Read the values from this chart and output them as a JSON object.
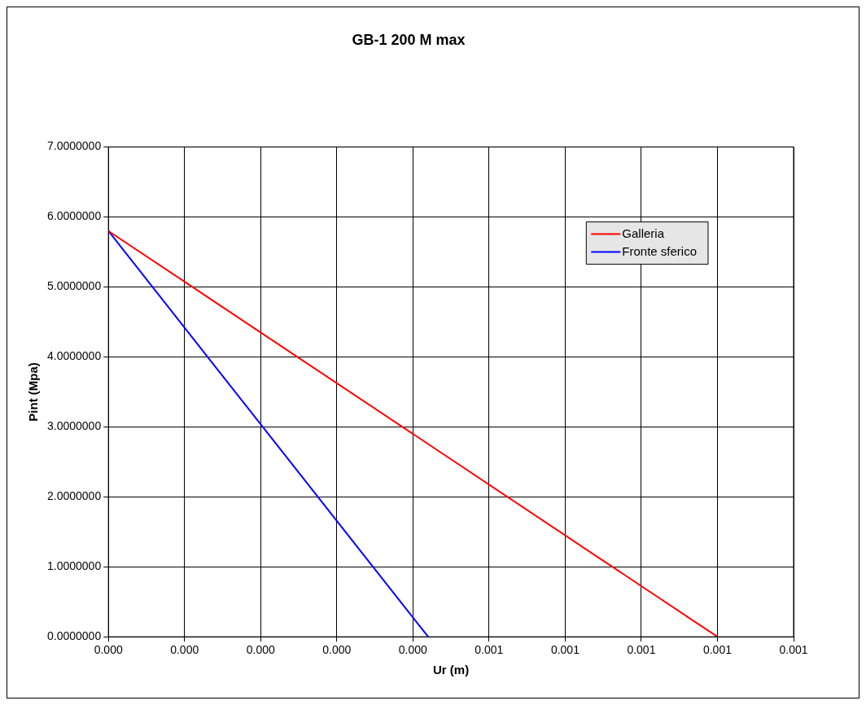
{
  "chart_data": {
    "type": "line",
    "title": "GB-1 200 M max",
    "xlabel": "Ur (m)",
    "ylabel": "Pint (Mpa)",
    "series": [
      {
        "name": "Galleria",
        "color": "#ff0000",
        "x": [
          0,
          0.0008
        ],
        "values": [
          5.8,
          0
        ]
      },
      {
        "name": "Fronte sferico",
        "color": "#0000ff",
        "x": [
          0,
          0.00042
        ],
        "values": [
          5.8,
          0
        ]
      }
    ],
    "xlim": [
      0,
      0.0009
    ],
    "xticks": [
      {
        "value": 0,
        "label": "0.000"
      },
      {
        "value": 0.0001,
        "label": "0.000"
      },
      {
        "value": 0.0002,
        "label": "0.000"
      },
      {
        "value": 0.0003,
        "label": "0.000"
      },
      {
        "value": 0.0004,
        "label": "0.000"
      },
      {
        "value": 0.0005,
        "label": "0.001"
      },
      {
        "value": 0.0006,
        "label": "0.001"
      },
      {
        "value": 0.0007,
        "label": "0.001"
      },
      {
        "value": 0.0008,
        "label": "0.001"
      },
      {
        "value": 0.0009,
        "label": "0.001"
      }
    ],
    "ylim": [
      0,
      7
    ],
    "yticks": [
      {
        "value": 0,
        "label": "0.0000000"
      },
      {
        "value": 1,
        "label": "1.0000000"
      },
      {
        "value": 2,
        "label": "2.0000000"
      },
      {
        "value": 3,
        "label": "3.0000000"
      },
      {
        "value": 4,
        "label": "4.0000000"
      },
      {
        "value": 5,
        "label": "5.0000000"
      },
      {
        "value": 6,
        "label": "6.0000000"
      },
      {
        "value": 7,
        "label": "7.0000000"
      }
    ],
    "grid": true,
    "legend": "top right",
    "marker": "none",
    "line_style": "solid"
  }
}
